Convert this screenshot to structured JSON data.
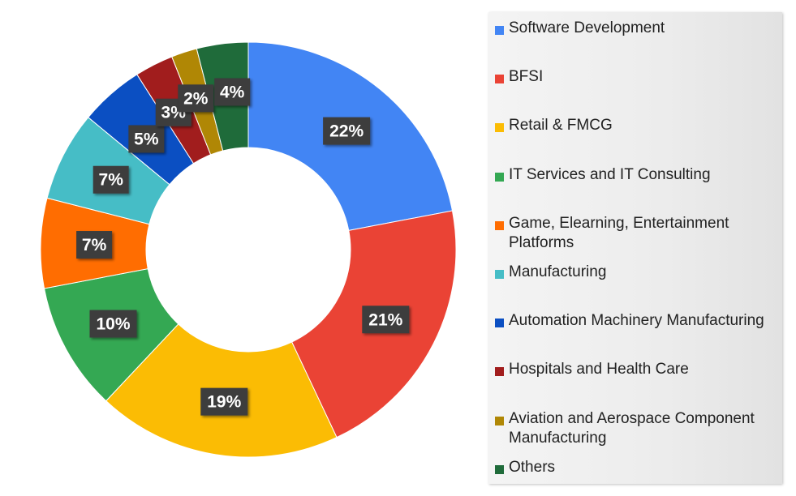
{
  "chart_data": {
    "type": "pie",
    "variant": "donut",
    "title": "",
    "legend_position": "right",
    "slices": [
      {
        "label": "Software Development",
        "value": 22,
        "display": "22%",
        "color": "#4285F4"
      },
      {
        "label": "BFSI",
        "value": 21,
        "display": "21%",
        "color": "#EA4335"
      },
      {
        "label": "Retail & FMCG",
        "value": 19,
        "display": "19%",
        "color": "#FBBC04"
      },
      {
        "label": "IT Services and IT Consulting",
        "value": 10,
        "display": "10%",
        "color": "#34A853"
      },
      {
        "label": "Game, Elearning, Entertainment Platforms",
        "value": 7,
        "display": "7%",
        "color": "#FF6D01"
      },
      {
        "label": "Manufacturing",
        "value": 7,
        "display": "7%",
        "color": "#46BDC6"
      },
      {
        "label": "Automation Machinery Manufacturing",
        "value": 5,
        "display": "5%",
        "color": "#0B4FC2"
      },
      {
        "label": "Hospitals and Health Care",
        "value": 3,
        "display": "3%",
        "color": "#A11D1D"
      },
      {
        "label": "Aviation and Aerospace Component Manufacturing",
        "value": 2,
        "display": "2%",
        "color": "#B08705"
      },
      {
        "label": "Others",
        "value": 4,
        "display": "4%",
        "color": "#1F6B3A"
      }
    ]
  }
}
